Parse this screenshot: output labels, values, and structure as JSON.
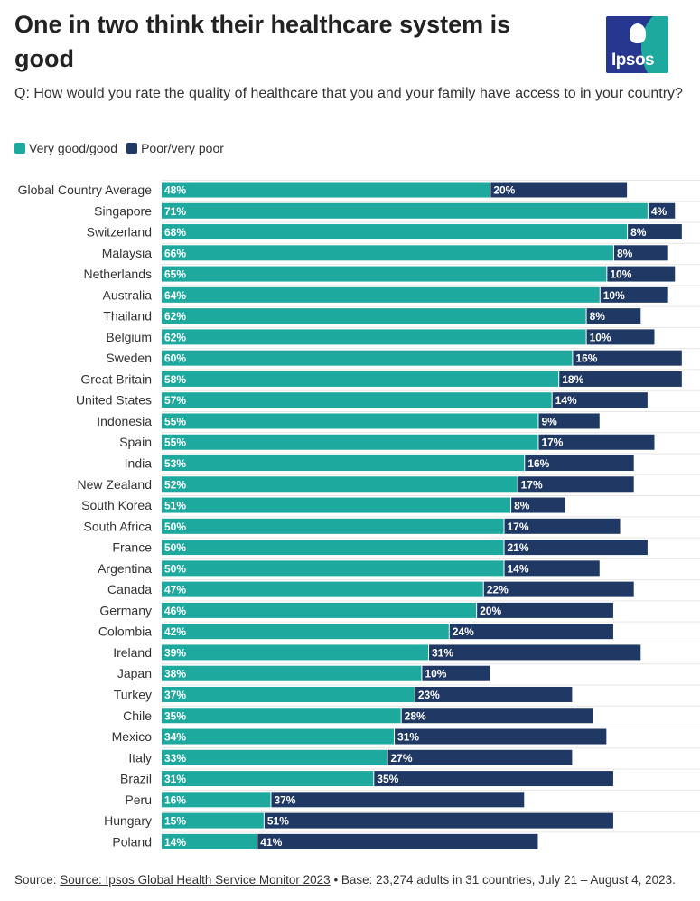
{
  "header": {
    "title": "One in two think their healthcare system is good",
    "question": "Q: How would you rate the quality of healthcare that you and your family have access to in your country?",
    "logo_text": "Ipsos"
  },
  "legend": [
    {
      "label": "Very good/good",
      "color": "#1ea99e"
    },
    {
      "label": "Poor/very poor",
      "color": "#1f3864"
    }
  ],
  "chart_data": {
    "type": "bar",
    "orientation": "horizontal",
    "stacked": true,
    "categories": [
      "Global Country Average",
      "Singapore",
      "Switzerland",
      "Malaysia",
      "Netherlands",
      "Australia",
      "Thailand",
      "Belgium",
      "Sweden",
      "Great Britain",
      "United States",
      "Indonesia",
      "Spain",
      "India",
      "New Zealand",
      "South Korea",
      "South Africa",
      "France",
      "Argentina",
      "Canada",
      "Germany",
      "Colombia",
      "Ireland",
      "Japan",
      "Turkey",
      "Chile",
      "Mexico",
      "Italy",
      "Brazil",
      "Peru",
      "Hungary",
      "Poland"
    ],
    "series": [
      {
        "name": "Very good/good",
        "color": "#1ea99e",
        "values": [
          48,
          71,
          68,
          66,
          65,
          64,
          62,
          62,
          60,
          58,
          57,
          55,
          55,
          53,
          52,
          51,
          50,
          50,
          50,
          47,
          46,
          42,
          39,
          38,
          37,
          35,
          34,
          33,
          31,
          16,
          15,
          14
        ]
      },
      {
        "name": "Poor/very poor",
        "color": "#1f3864",
        "values": [
          20,
          4,
          8,
          8,
          10,
          10,
          8,
          10,
          16,
          18,
          14,
          9,
          17,
          16,
          17,
          8,
          17,
          21,
          14,
          22,
          20,
          24,
          31,
          10,
          23,
          28,
          31,
          27,
          35,
          37,
          51,
          41
        ]
      }
    ],
    "value_suffix": "%",
    "legend_position": "top-left",
    "grid": true
  },
  "footer": {
    "prefix": "Source: ",
    "link_text": "Source: Ipsos Global Health Service Monitor 2023",
    "suffix": " • Base: 23,274 adults in 31 countries, July 21 – August 4, 2023."
  }
}
